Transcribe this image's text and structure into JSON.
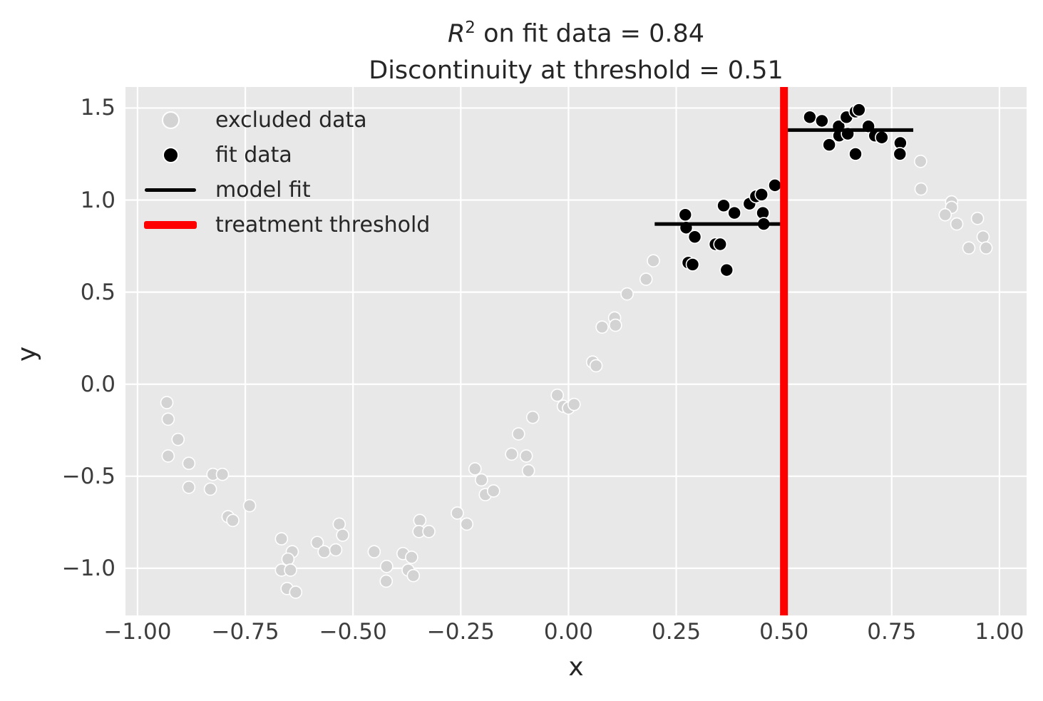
{
  "title": {
    "r_symbol": "R",
    "r_exponent": "2",
    "line1_rest": " on fit data = 0.84",
    "line2": "Discontinuity at threshold = 0.51"
  },
  "axes": {
    "x_label": "x",
    "y_label": "y"
  },
  "legend": {
    "position": "upper left",
    "items": [
      {
        "label": "excluded data",
        "marker": "dot",
        "color": "#d3d3d3",
        "size": 21
      },
      {
        "label": "fit data",
        "marker": "dot",
        "color": "#000000",
        "size": 19
      },
      {
        "label": "model fit",
        "marker": "line",
        "color": "#000000",
        "thickness": 5,
        "length": 72
      },
      {
        "label": "treatment threshold",
        "marker": "line",
        "color": "#ff0000",
        "thickness": 11,
        "length": 74
      }
    ]
  },
  "chart_data": {
    "type": "scatter",
    "title": "R^2 on fit data = 0.84 / Discontinuity at threshold = 0.51",
    "xlabel": "x",
    "ylabel": "y",
    "xlim": [
      -1.028,
      1.063
    ],
    "ylim": [
      -1.256,
      1.614
    ],
    "grid": true,
    "grid_color": "#ffffff",
    "panel_color": "#e8e8e8",
    "x_ticks": {
      "values": [
        -1.0,
        -0.75,
        -0.5,
        -0.25,
        0.0,
        0.25,
        0.5,
        0.75,
        1.0
      ],
      "labels": [
        "−1.00",
        "−0.75",
        "−0.50",
        "−0.25",
        "0.00",
        "0.25",
        "0.50",
        "0.75",
        "1.00"
      ]
    },
    "y_ticks": {
      "values": [
        1.5,
        1.0,
        0.5,
        0.0,
        -0.5,
        -1.0
      ],
      "labels": [
        "1.5",
        "1.0",
        "0.5",
        "0.0",
        "−0.5",
        "−1.0"
      ]
    },
    "series": [
      {
        "name": "excluded data",
        "type": "scatter",
        "color": "#d3d3d3",
        "edge_color": "#ffffff",
        "radius": 8.5,
        "points": [
          [
            -0.932,
            -0.1
          ],
          [
            -0.929,
            -0.19
          ],
          [
            -0.906,
            -0.3
          ],
          [
            -0.929,
            -0.39
          ],
          [
            -0.881,
            -0.43
          ],
          [
            -0.825,
            -0.49
          ],
          [
            -0.803,
            -0.49
          ],
          [
            -0.881,
            -0.56
          ],
          [
            -0.831,
            -0.57
          ],
          [
            -0.74,
            -0.66
          ],
          [
            -0.79,
            -0.72
          ],
          [
            -0.779,
            -0.74
          ],
          [
            -0.666,
            -0.84
          ],
          [
            -0.641,
            -0.91
          ],
          [
            -0.651,
            -0.95
          ],
          [
            -0.666,
            -1.01
          ],
          [
            -0.645,
            -1.01
          ],
          [
            -0.653,
            -1.11
          ],
          [
            -0.633,
            -1.13
          ],
          [
            -0.583,
            -0.86
          ],
          [
            -0.567,
            -0.91
          ],
          [
            -0.54,
            -0.9
          ],
          [
            -0.532,
            -0.76
          ],
          [
            -0.524,
            -0.82
          ],
          [
            -0.451,
            -0.91
          ],
          [
            -0.422,
            -0.99
          ],
          [
            -0.423,
            -1.07
          ],
          [
            -0.384,
            -0.92
          ],
          [
            -0.364,
            -0.94
          ],
          [
            -0.372,
            -1.01
          ],
          [
            -0.36,
            -1.04
          ],
          [
            -0.345,
            -0.74
          ],
          [
            -0.347,
            -0.8
          ],
          [
            -0.324,
            -0.8
          ],
          [
            -0.258,
            -0.7
          ],
          [
            -0.236,
            -0.76
          ],
          [
            -0.217,
            -0.46
          ],
          [
            -0.202,
            -0.52
          ],
          [
            -0.193,
            -0.6
          ],
          [
            -0.174,
            -0.58
          ],
          [
            -0.132,
            -0.38
          ],
          [
            -0.116,
            -0.27
          ],
          [
            -0.098,
            -0.39
          ],
          [
            -0.093,
            -0.47
          ],
          [
            -0.083,
            -0.18
          ],
          [
            -0.026,
            -0.06
          ],
          [
            -0.012,
            -0.12
          ],
          [
            0.0,
            -0.13
          ],
          [
            0.013,
            -0.11
          ],
          [
            0.056,
            0.12
          ],
          [
            0.064,
            0.1
          ],
          [
            0.078,
            0.31
          ],
          [
            0.107,
            0.36
          ],
          [
            0.109,
            0.32
          ],
          [
            0.136,
            0.49
          ],
          [
            0.18,
            0.57
          ],
          [
            0.197,
            0.67
          ],
          [
            0.817,
            1.21
          ],
          [
            0.818,
            1.06
          ],
          [
            0.889,
            0.99
          ],
          [
            0.889,
            0.96
          ],
          [
            0.874,
            0.92
          ],
          [
            0.901,
            0.87
          ],
          [
            0.949,
            0.9
          ],
          [
            0.962,
            0.8
          ],
          [
            0.929,
            0.74
          ],
          [
            0.969,
            0.74
          ]
        ]
      },
      {
        "name": "fit data",
        "type": "scatter",
        "color": "#000000",
        "edge_color": "#ffffff",
        "radius": 9,
        "points": [
          [
            0.271,
            0.92
          ],
          [
            0.273,
            0.85
          ],
          [
            0.293,
            0.8
          ],
          [
            0.278,
            0.66
          ],
          [
            0.288,
            0.65
          ],
          [
            0.341,
            0.76
          ],
          [
            0.352,
            0.76
          ],
          [
            0.36,
            0.97
          ],
          [
            0.385,
            0.93
          ],
          [
            0.367,
            0.62
          ],
          [
            0.42,
            0.98
          ],
          [
            0.435,
            1.02
          ],
          [
            0.448,
            1.03
          ],
          [
            0.451,
            0.93
          ],
          [
            0.453,
            0.87
          ],
          [
            0.479,
            1.08
          ],
          [
            0.56,
            1.45
          ],
          [
            0.588,
            1.43
          ],
          [
            0.605,
            1.3
          ],
          [
            0.627,
            1.4
          ],
          [
            0.628,
            1.35
          ],
          [
            0.645,
            1.45
          ],
          [
            0.648,
            1.36
          ],
          [
            0.666,
            1.48
          ],
          [
            0.674,
            1.49
          ],
          [
            0.666,
            1.25
          ],
          [
            0.696,
            1.4
          ],
          [
            0.711,
            1.35
          ],
          [
            0.727,
            1.34
          ],
          [
            0.77,
            1.31
          ],
          [
            0.769,
            1.25
          ]
        ]
      },
      {
        "name": "model fit",
        "type": "line",
        "color": "#000000",
        "width": 5,
        "segments": [
          {
            "x1": 0.2,
            "x2": 0.5,
            "y": 0.87
          },
          {
            "x1": 0.5,
            "x2": 0.8,
            "y": 1.38
          }
        ]
      },
      {
        "name": "treatment threshold",
        "type": "vline",
        "color": "#ff0000",
        "width": 11,
        "x": 0.5
      }
    ],
    "annotations": {
      "r_squared_on_fit_data": 0.84,
      "discontinuity_at_threshold": 0.51
    }
  }
}
